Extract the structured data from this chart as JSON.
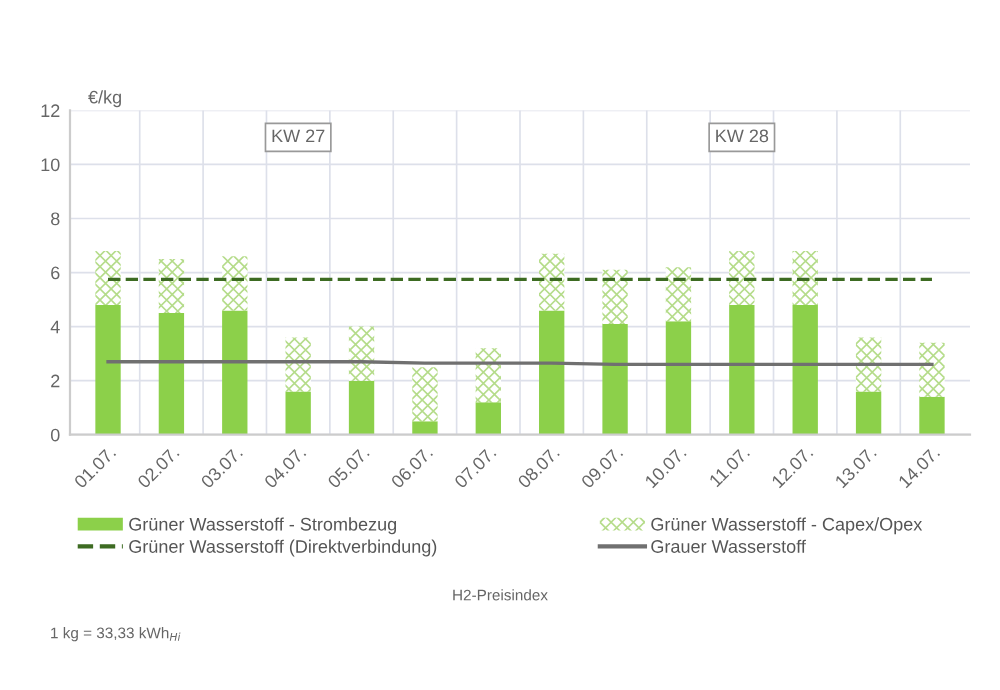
{
  "chart_data": {
    "type": "bar",
    "stacked": true,
    "ylabel": "€/kg",
    "categories": [
      "01.07.",
      "02.07.",
      "03.07.",
      "04.07.",
      "05.07.",
      "06.07.",
      "07.07.",
      "08.07.",
      "09.07.",
      "10.07.",
      "11.07.",
      "12.07.",
      "13.07.",
      "14.07."
    ],
    "series": [
      {
        "name": "Grüner Wasserstoff - Strombezug",
        "color": "#8cd04a",
        "values": [
          4.8,
          4.5,
          4.6,
          1.6,
          2.0,
          0.5,
          1.2,
          4.6,
          4.1,
          4.2,
          4.8,
          4.8,
          1.6,
          1.4
        ]
      },
      {
        "name": "Grüner Wasserstoff - Capex/Opex",
        "color": "#b5dc8a",
        "values": [
          2.0,
          2.0,
          2.0,
          2.0,
          2.0,
          2.0,
          2.0,
          2.1,
          2.0,
          2.0,
          2.0,
          2.0,
          2.0,
          2.0
        ]
      },
      {
        "name": "Grüner Wasserstoff (Direktverbindung)",
        "type": "line",
        "line_style": "dashed",
        "color": "#3d6b22",
        "values": [
          5.75,
          5.75,
          5.75,
          5.75,
          5.75,
          5.75,
          5.75,
          5.75,
          5.75,
          5.75,
          5.75,
          5.75,
          5.75,
          5.75
        ]
      },
      {
        "name": "Grauer Wasserstoff",
        "type": "line",
        "line_style": "solid",
        "color": "#707070",
        "values": [
          2.7,
          2.7,
          2.7,
          2.7,
          2.7,
          2.65,
          2.65,
          2.65,
          2.6,
          2.6,
          2.6,
          2.6,
          2.6,
          2.6
        ]
      }
    ],
    "ylim": [
      0,
      12
    ],
    "yticks": [
      0,
      2,
      4,
      6,
      8,
      10,
      12
    ],
    "grid": true,
    "legend": "bottom",
    "annotations": [
      {
        "text": "KW 27",
        "x": "04.07.",
        "y": 11
      },
      {
        "text": "KW 28",
        "x": "11.07.",
        "y": 11
      },
      "H2-Preisindex",
      "1 kg = 33,33 kWh$_{Hi}$"
    ]
  }
}
